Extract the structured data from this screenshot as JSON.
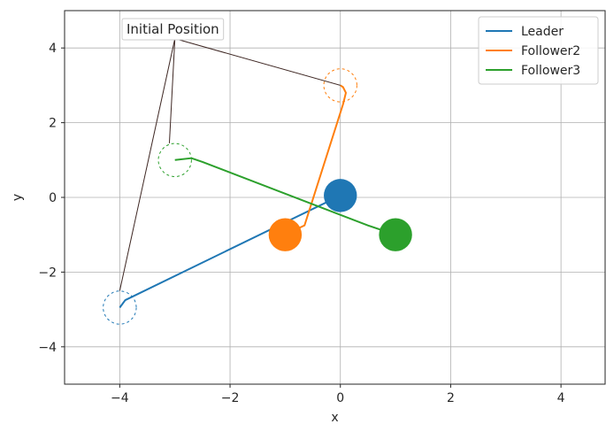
{
  "chart_data": {
    "type": "line",
    "xlabel": "x",
    "ylabel": "y",
    "xlim": [
      -5,
      4.8
    ],
    "ylim": [
      -5,
      5
    ],
    "xticks": [
      -4,
      -2,
      0,
      2,
      4
    ],
    "yticks": [
      -4,
      -2,
      0,
      2,
      4
    ],
    "xtick_labels": [
      "−4",
      "−2",
      "0",
      "2",
      "4"
    ],
    "ytick_labels": [
      "−4",
      "−2",
      "0",
      "2",
      "4"
    ],
    "grid": true,
    "legend_position": "top-right",
    "series": [
      {
        "name": "Leader",
        "color": "#1f77b4",
        "x": [
          -4.0,
          -3.95,
          -3.9,
          0.0
        ],
        "y": [
          -2.95,
          -2.85,
          -2.75,
          0.05
        ],
        "start": [
          -4.0,
          -2.95
        ],
        "end": [
          0.0,
          0.05
        ]
      },
      {
        "name": "Follower2",
        "color": "#ff7f0e",
        "x": [
          0.0,
          0.05,
          0.1,
          0.05,
          -0.65,
          -1.0
        ],
        "y": [
          3.0,
          2.95,
          2.8,
          2.5,
          -0.75,
          -1.0
        ],
        "start": [
          0.0,
          3.0
        ],
        "end": [
          -1.0,
          -1.0
        ]
      },
      {
        "name": "Follower3",
        "color": "#2ca02c",
        "x": [
          -3.0,
          -2.7,
          -2.5,
          0.5,
          1.0
        ],
        "y": [
          1.0,
          1.05,
          0.95,
          -0.75,
          -1.0
        ],
        "start": [
          -3.0,
          1.0
        ],
        "end": [
          1.0,
          -1.0
        ]
      }
    ],
    "annotation": {
      "text": "Initial Position",
      "anchor": [
        -3.0,
        4.25
      ],
      "line_color": "#3e2723",
      "targets": [
        [
          0.0,
          3.0
        ],
        [
          -3.1,
          1.45
        ],
        [
          -4.0,
          -2.5
        ]
      ]
    }
  }
}
